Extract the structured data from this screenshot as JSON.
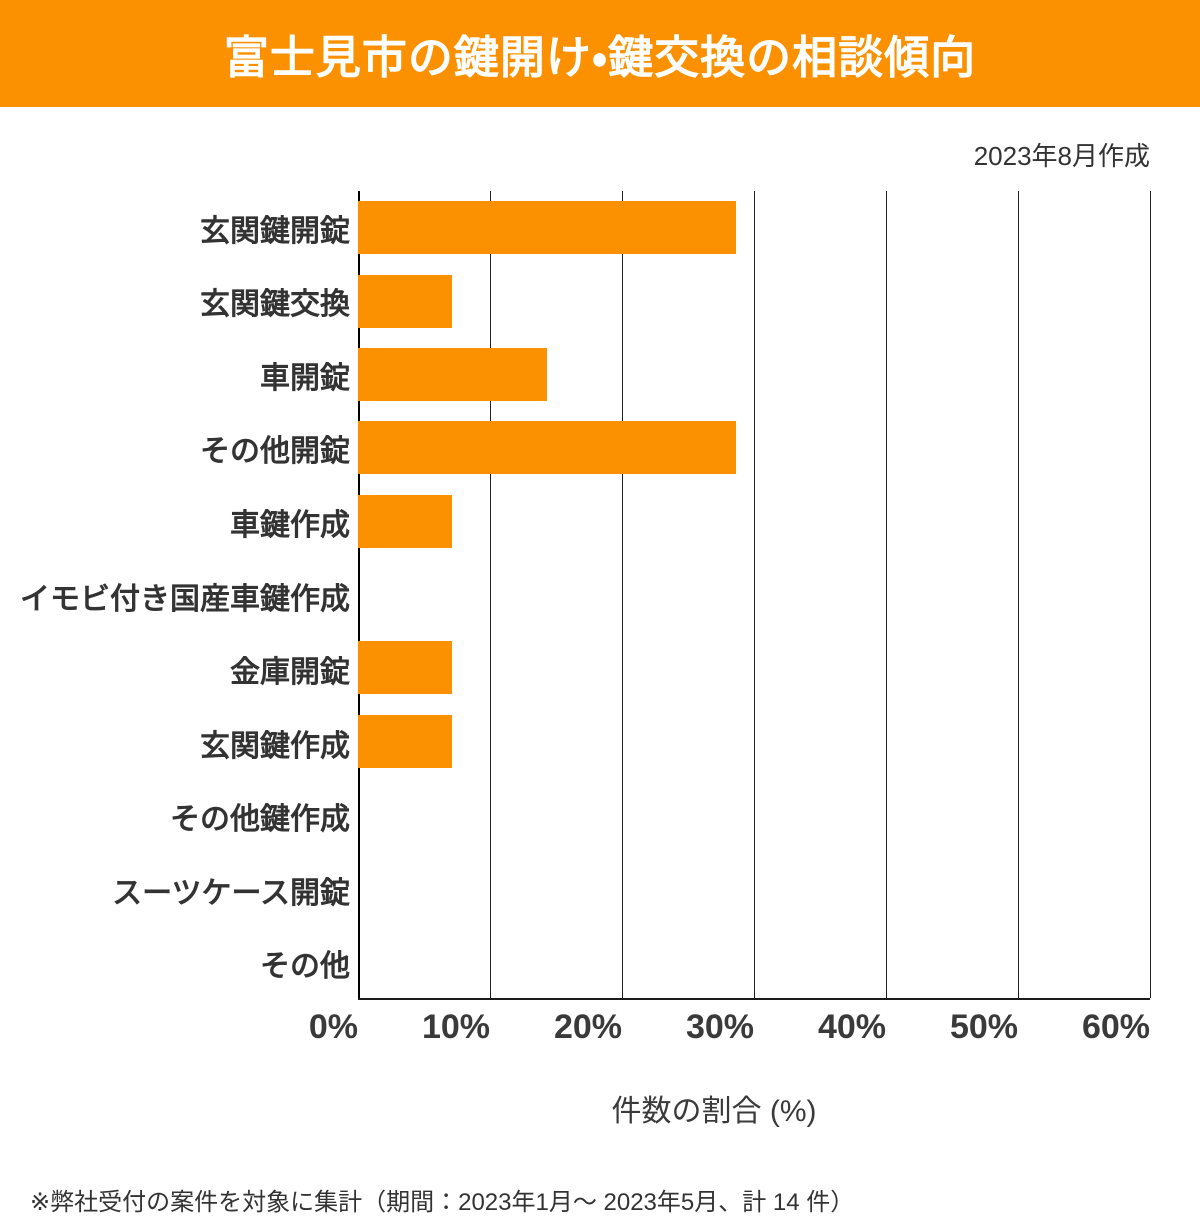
{
  "header": {
    "title": "富士見市の鍵開け・鍵交換の相談傾向",
    "banner_color": "#FB9100",
    "title_color": "#ffffff"
  },
  "meta": {
    "created_note": "2023年8月作成"
  },
  "chart_data": {
    "type": "bar",
    "orientation": "horizontal",
    "title": "富士見市の鍵開け・鍵交換の相談傾向",
    "categories": [
      "玄関鍵開錠",
      "玄関鍵交換",
      "車開錠",
      "その他開錠",
      "車鍵作成",
      "イモビ付き国産車鍵作成",
      "金庫開錠",
      "玄関鍵作成",
      "その他鍵作成",
      "スーツケース開錠",
      "その他"
    ],
    "values": [
      28.6,
      7.1,
      14.3,
      28.6,
      7.1,
      0,
      7.1,
      7.1,
      0,
      0,
      0
    ],
    "unit": "%",
    "xlabel": "件数の割合 (%)",
    "xlim": [
      0,
      60
    ],
    "x_ticks": [
      "0%",
      "10%",
      "20%",
      "30%",
      "40%",
      "50%",
      "60%"
    ],
    "bar_color": "#FB9100",
    "grid": "vertical",
    "legend": "none"
  },
  "footer": {
    "note": "※弊社受付の案件を対象に集計（期間：2023年1月～ 2023年5月、計 14 件）"
  }
}
